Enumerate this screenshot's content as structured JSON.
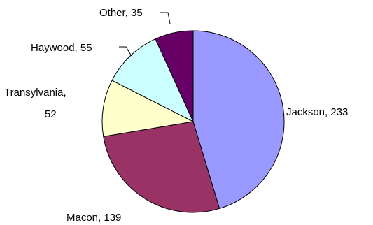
{
  "chart_data": {
    "type": "pie",
    "title": "",
    "slices": [
      {
        "label": "Jackson",
        "value": 233,
        "color": "#9999FF",
        "text": "Jackson, 233"
      },
      {
        "label": "Macon",
        "value": 139,
        "color": "#993366",
        "text": "Macon, 139"
      },
      {
        "label": "Transylvania",
        "value": 52,
        "color": "#FFFFCC",
        "text": [
          "Transylvania,",
          "52"
        ]
      },
      {
        "label": "Haywood",
        "value": 55,
        "color": "#CCFFFF",
        "text": "Haywood, 55"
      },
      {
        "label": "Other",
        "value": 35,
        "color": "#660066",
        "text": "Other, 35"
      }
    ],
    "start_angle": "12 o'clock",
    "direction": "clockwise",
    "legend": "none"
  }
}
